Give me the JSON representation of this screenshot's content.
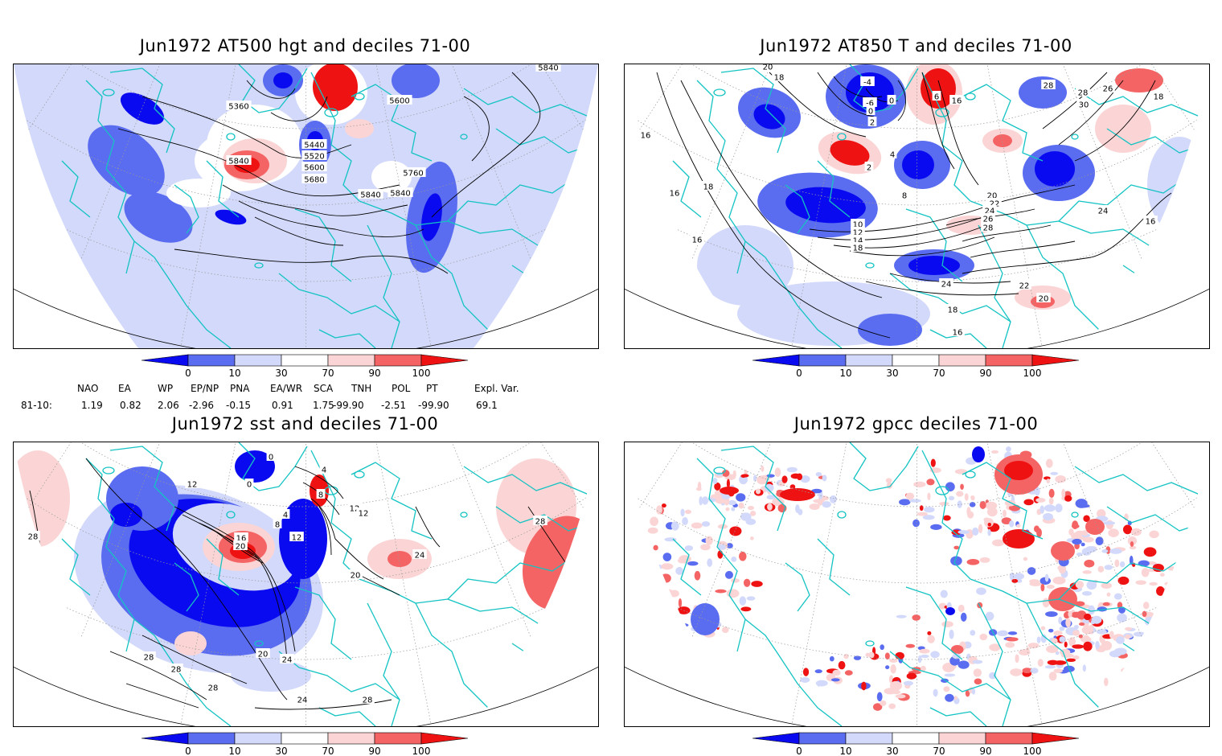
{
  "panels": [
    {
      "id": "hgt",
      "title": "Jun1972 AT500 hgt and deciles 71-00",
      "contour_labels": [
        "5840",
        "5840",
        "5360",
        "5600",
        "5440",
        "5520",
        "5600",
        "5680",
        "5840",
        "5760",
        "5840"
      ]
    },
    {
      "id": "t850",
      "title": "Jun1972 AT850 T and deciles 71-00",
      "contour_labels": [
        "20",
        "18",
        "16",
        "16",
        "16",
        "18",
        "-4",
        "-6",
        "0",
        "2",
        "0",
        "2",
        "4",
        "6",
        "16",
        "28",
        "26",
        "28",
        "30",
        "18",
        "8",
        "10",
        "12",
        "14",
        "18",
        "20",
        "22",
        "24",
        "26",
        "28",
        "24",
        "22",
        "16",
        "18",
        "20",
        "24",
        "16"
      ]
    },
    {
      "id": "sst",
      "title": "Jun1972 sst and deciles 71-00",
      "contour_labels": [
        "28",
        "12",
        "0",
        "0",
        "4",
        "8",
        "12",
        "12",
        "16",
        "20",
        "12",
        "8",
        "4",
        "24",
        "20",
        "20",
        "24",
        "28",
        "28",
        "28",
        "28",
        "24",
        "28"
      ]
    },
    {
      "id": "gpcc",
      "title": "Jun1972 gpcc deciles 71-00",
      "contour_labels": []
    }
  ],
  "colorbar": {
    "ticks": [
      "0",
      "10",
      "30",
      "70",
      "90",
      "100"
    ],
    "colors": [
      "#0a0af0",
      "#5a6cf0",
      "#d3d9fb",
      "#ffffff",
      "#fbd5d5",
      "#f56464",
      "#ee1212"
    ]
  },
  "indices": {
    "headers": [
      "NAO",
      "EA",
      "WP",
      "EP/NP",
      "PNA",
      "EA/WR",
      "SCA",
      "TNH",
      "POL",
      "PT",
      "Expl. Var."
    ],
    "row_label": "81-10:",
    "values": [
      "1.19",
      "0.82",
      "2.06",
      "-2.96",
      "-0.15",
      "0.91",
      "1.75",
      "-99.90",
      "-2.51",
      "-99.90",
      "69.1"
    ]
  },
  "colors": {
    "coast": "#14c3c3",
    "contour": "#000000"
  }
}
